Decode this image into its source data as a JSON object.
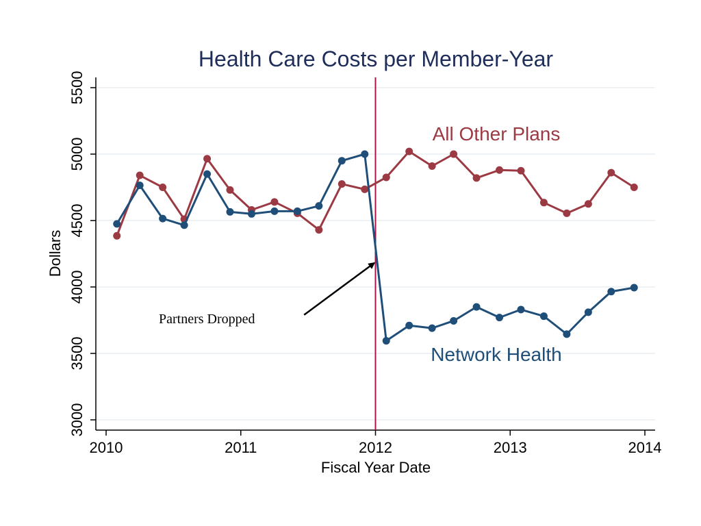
{
  "chart_data": {
    "type": "line",
    "title": "Health Care Costs per Member-Year",
    "xlabel": "Fiscal Year Date",
    "ylabel": "Dollars",
    "xlim": [
      2010,
      2014
    ],
    "ylim": [
      3000,
      5500
    ],
    "xticks": [
      2010,
      2011,
      2012,
      2013,
      2014
    ],
    "yticks": [
      3000,
      3500,
      4000,
      4500,
      5000,
      5500
    ],
    "grid": true,
    "colors": {
      "title": "#1f2d5a",
      "network": "#1f4e79",
      "other": "#9c3a44",
      "vline": "#b0124a",
      "grid": "#dde6ea",
      "axis": "#000000"
    },
    "series": [
      {
        "name": "All Other Plans",
        "label_position": "upper-right",
        "x": [
          2010.08,
          2010.25,
          2010.42,
          2010.58,
          2010.75,
          2010.92,
          2011.08,
          2011.25,
          2011.42,
          2011.58,
          2011.75,
          2011.92,
          2012.08,
          2012.25,
          2012.42,
          2012.58,
          2012.75,
          2012.92,
          2013.08,
          2013.25,
          2013.42,
          2013.58,
          2013.75,
          2013.92
        ],
        "values": [
          4385,
          4840,
          4750,
          4510,
          4965,
          4730,
          4580,
          4640,
          4555,
          4430,
          4775,
          4735,
          4825,
          5020,
          4910,
          5000,
          4820,
          4880,
          4875,
          4635,
          4555,
          4625,
          4860,
          4750
        ]
      },
      {
        "name": "Network Health",
        "label_position": "lower-right",
        "x": [
          2010.08,
          2010.25,
          2010.42,
          2010.58,
          2010.75,
          2010.92,
          2011.08,
          2011.25,
          2011.42,
          2011.58,
          2011.75,
          2011.92,
          2012.08,
          2012.25,
          2012.42,
          2012.58,
          2012.75,
          2012.92,
          2013.08,
          2013.25,
          2013.42,
          2013.58,
          2013.75,
          2013.92
        ],
        "values": [
          4475,
          4765,
          4515,
          4465,
          4850,
          4565,
          4550,
          4570,
          4570,
          4610,
          4950,
          5000,
          3595,
          3710,
          3690,
          3745,
          3850,
          3770,
          3830,
          3780,
          3645,
          3810,
          3965,
          3995
        ]
      }
    ],
    "vline": {
      "x": 2012
    },
    "annotation": {
      "text": "Partners Dropped",
      "x": 2010.4,
      "y": 3770,
      "arrow_from": [
        2011.47,
        3790
      ],
      "arrow_to": [
        2011.99,
        4180
      ]
    }
  }
}
